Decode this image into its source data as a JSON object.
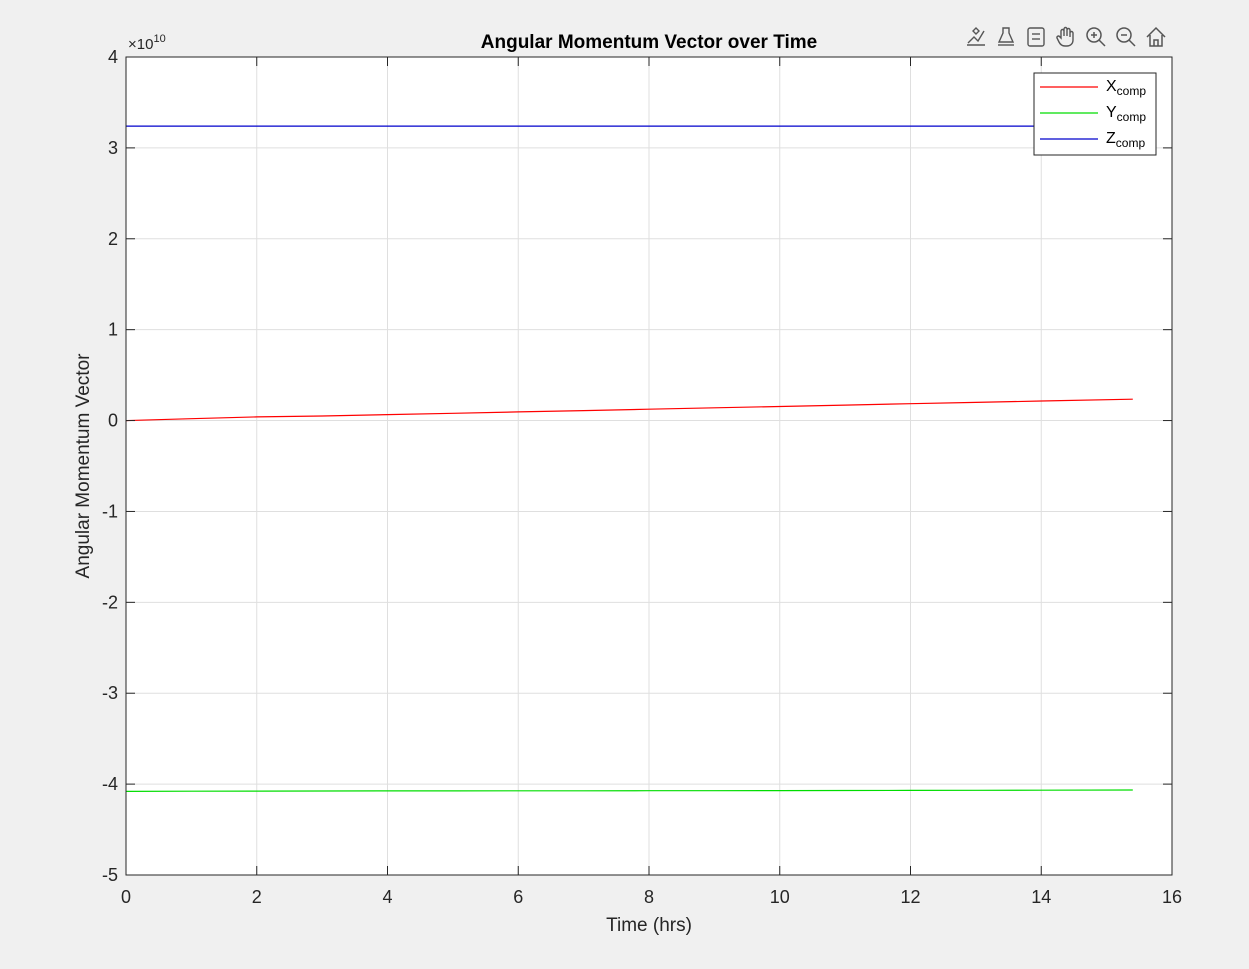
{
  "chart_data": {
    "type": "line",
    "title": "Angular Momentum Vector over Time",
    "xlabel": "Time (hrs)",
    "ylabel": "Angular Momentum Vector",
    "exponent_label": "×10",
    "exponent_power": "10",
    "xlim": [
      0,
      16
    ],
    "ylim": [
      -5,
      4
    ],
    "y_scale": 10000000000.0,
    "xticks": [
      0,
      2,
      4,
      6,
      8,
      10,
      12,
      14,
      16
    ],
    "yticks": [
      -5,
      -4,
      -3,
      -2,
      -1,
      0,
      1,
      2,
      3,
      4
    ],
    "grid": true,
    "legend_position": "top-right",
    "series": [
      {
        "name": "X",
        "name_sub": "comp",
        "color": "#ff0000",
        "x": [
          0,
          1,
          2,
          3,
          4,
          5,
          6,
          7,
          8,
          9,
          10,
          11,
          12,
          13,
          14,
          15.4
        ],
        "y": [
          0.0,
          0.02,
          0.04,
          0.05,
          0.065,
          0.08,
          0.095,
          0.11,
          0.125,
          0.14,
          0.155,
          0.17,
          0.185,
          0.2,
          0.215,
          0.235
        ]
      },
      {
        "name": "Y",
        "name_sub": "comp",
        "color": "#00dd00",
        "x": [
          0,
          1,
          2,
          3,
          4,
          5,
          6,
          7,
          8,
          9,
          10,
          11,
          12,
          13,
          14,
          15.4
        ],
        "y": [
          -4.08,
          -4.078,
          -4.077,
          -4.076,
          -4.075,
          -4.075,
          -4.074,
          -4.074,
          -4.073,
          -4.072,
          -4.071,
          -4.07,
          -4.069,
          -4.068,
          -4.067,
          -4.065
        ]
      },
      {
        "name": "Z",
        "name_sub": "comp",
        "color": "#0000cc",
        "x": [
          0,
          15.4
        ],
        "y": [
          3.24,
          3.24
        ]
      }
    ]
  },
  "toolbar": {
    "icons": [
      "brush-icon",
      "data-tips-icon",
      "legend-toggle-icon",
      "pan-hand-icon",
      "zoom-in-icon",
      "zoom-out-icon",
      "home-icon"
    ]
  }
}
